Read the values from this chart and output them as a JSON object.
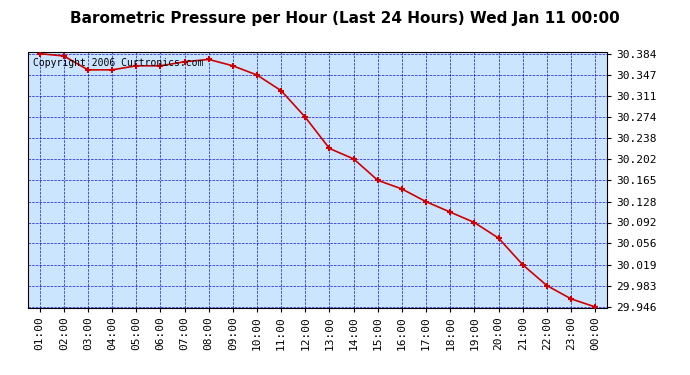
{
  "title": "Barometric Pressure per Hour (Last 24 Hours) Wed Jan 11 00:00",
  "copyright": "Copyright 2006 Curtronics.com",
  "hours": [
    "01:00",
    "02:00",
    "03:00",
    "04:00",
    "05:00",
    "06:00",
    "07:00",
    "08:00",
    "09:00",
    "10:00",
    "11:00",
    "12:00",
    "13:00",
    "14:00",
    "15:00",
    "16:00",
    "17:00",
    "18:00",
    "19:00",
    "20:00",
    "21:00",
    "22:00",
    "23:00",
    "00:00"
  ],
  "values": [
    30.384,
    30.38,
    30.356,
    30.356,
    30.363,
    30.363,
    30.37,
    30.374,
    30.363,
    30.347,
    30.32,
    30.274,
    30.22,
    30.202,
    30.165,
    30.15,
    30.128,
    30.11,
    30.092,
    30.065,
    30.019,
    29.983,
    29.96,
    29.946
  ],
  "yticks": [
    29.946,
    29.983,
    30.019,
    30.056,
    30.092,
    30.128,
    30.165,
    30.202,
    30.238,
    30.274,
    30.311,
    30.347,
    30.384
  ],
  "ylim_min": 29.946,
  "ylim_max": 30.384,
  "line_color": "#cc0000",
  "marker_color": "#cc0000",
  "bg_color": "#cce5ff",
  "grid_color": "#0000cc",
  "title_fontsize": 11,
  "axis_label_fontsize": 8,
  "copyright_fontsize": 7,
  "fig_width": 6.9,
  "fig_height": 3.75,
  "dpi": 100
}
